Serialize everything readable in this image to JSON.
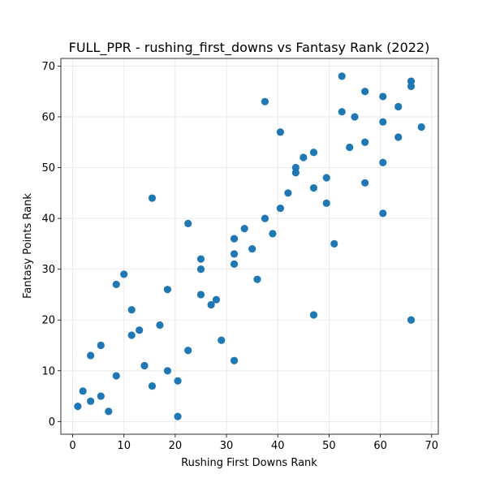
{
  "chart_data": {
    "type": "scatter",
    "title": "FULL_PPR - rushing_first_downs vs Fantasy Rank (2022)",
    "xlabel": "Rushing First Downs Rank",
    "ylabel": "Fantasy Points Rank",
    "xlim": [
      -2.3,
      71.3
    ],
    "ylim": [
      -2.5,
      71.5
    ],
    "xticks": [
      0,
      10,
      20,
      30,
      40,
      50,
      60,
      70
    ],
    "yticks": [
      0,
      10,
      20,
      30,
      40,
      50,
      60,
      70
    ],
    "grid": true,
    "point_color": "#1f77b4",
    "points": [
      {
        "x": 1,
        "y": 3
      },
      {
        "x": 2,
        "y": 6
      },
      {
        "x": 3.5,
        "y": 4
      },
      {
        "x": 3.5,
        "y": 13
      },
      {
        "x": 5.5,
        "y": 5
      },
      {
        "x": 5.5,
        "y": 15
      },
      {
        "x": 7,
        "y": 2
      },
      {
        "x": 8.5,
        "y": 9
      },
      {
        "x": 8.5,
        "y": 27
      },
      {
        "x": 10,
        "y": 29
      },
      {
        "x": 11.5,
        "y": 22
      },
      {
        "x": 11.5,
        "y": 17
      },
      {
        "x": 13,
        "y": 18
      },
      {
        "x": 14,
        "y": 11
      },
      {
        "x": 15.5,
        "y": 7
      },
      {
        "x": 15.5,
        "y": 44
      },
      {
        "x": 17,
        "y": 19
      },
      {
        "x": 18.5,
        "y": 26
      },
      {
        "x": 18.5,
        "y": 10
      },
      {
        "x": 20.5,
        "y": 8
      },
      {
        "x": 20.5,
        "y": 1
      },
      {
        "x": 22.5,
        "y": 39
      },
      {
        "x": 22.5,
        "y": 14
      },
      {
        "x": 25,
        "y": 32
      },
      {
        "x": 25,
        "y": 30
      },
      {
        "x": 25,
        "y": 25
      },
      {
        "x": 27,
        "y": 23
      },
      {
        "x": 28,
        "y": 24
      },
      {
        "x": 29,
        "y": 16
      },
      {
        "x": 31.5,
        "y": 36
      },
      {
        "x": 31.5,
        "y": 33
      },
      {
        "x": 31.5,
        "y": 31
      },
      {
        "x": 31.5,
        "y": 12
      },
      {
        "x": 33.5,
        "y": 38
      },
      {
        "x": 35,
        "y": 34
      },
      {
        "x": 36,
        "y": 28
      },
      {
        "x": 37.5,
        "y": 63
      },
      {
        "x": 37.5,
        "y": 40
      },
      {
        "x": 39,
        "y": 37
      },
      {
        "x": 40.5,
        "y": 57
      },
      {
        "x": 40.5,
        "y": 42
      },
      {
        "x": 42,
        "y": 45
      },
      {
        "x": 43.5,
        "y": 50
      },
      {
        "x": 43.5,
        "y": 49
      },
      {
        "x": 45,
        "y": 52
      },
      {
        "x": 47,
        "y": 53
      },
      {
        "x": 47,
        "y": 46
      },
      {
        "x": 47,
        "y": 21
      },
      {
        "x": 49.5,
        "y": 48
      },
      {
        "x": 49.5,
        "y": 43
      },
      {
        "x": 51,
        "y": 35
      },
      {
        "x": 52.5,
        "y": 68
      },
      {
        "x": 52.5,
        "y": 61
      },
      {
        "x": 54,
        "y": 54
      },
      {
        "x": 55,
        "y": 60
      },
      {
        "x": 57,
        "y": 65
      },
      {
        "x": 57,
        "y": 55
      },
      {
        "x": 57,
        "y": 47
      },
      {
        "x": 60.5,
        "y": 64
      },
      {
        "x": 60.5,
        "y": 59
      },
      {
        "x": 60.5,
        "y": 51
      },
      {
        "x": 60.5,
        "y": 41
      },
      {
        "x": 63.5,
        "y": 62
      },
      {
        "x": 63.5,
        "y": 56
      },
      {
        "x": 66,
        "y": 67
      },
      {
        "x": 66,
        "y": 66
      },
      {
        "x": 66,
        "y": 20
      },
      {
        "x": 68,
        "y": 58
      }
    ]
  }
}
